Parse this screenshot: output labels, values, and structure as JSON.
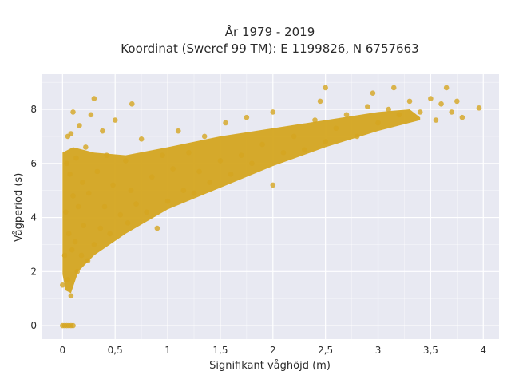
{
  "chart_data": {
    "type": "scatter",
    "title_line1": "År 1979 - 2019",
    "title_line2": "Koordinat (Sweref 99 TM): E 1199826, N 6757663",
    "xlabel": "Signifikant våghöjd (m)",
    "ylabel": "Vågperiod (s)",
    "xlim": [
      -0.2,
      4.15
    ],
    "ylim": [
      -0.5,
      9.3
    ],
    "xticks": [
      0,
      0.5,
      1,
      1.5,
      2,
      2.5,
      3,
      3.5,
      4
    ],
    "xtick_labels": [
      "0",
      "0,5",
      "1",
      "1,5",
      "2",
      "2,5",
      "3",
      "3,5",
      "4"
    ],
    "yticks": [
      0,
      2,
      4,
      6,
      8
    ],
    "ytick_labels": [
      "0",
      "2",
      "4",
      "6",
      "8"
    ],
    "grid": true,
    "colors": {
      "points": "#d4a520",
      "plot_bg": "#e8e9f2",
      "grid": "#ffffff"
    },
    "points": [
      [
        0.0,
        0
      ],
      [
        0.02,
        0
      ],
      [
        0.04,
        0
      ],
      [
        0.06,
        0
      ],
      [
        0.08,
        0
      ],
      [
        0.1,
        0
      ],
      [
        0.0,
        1.5
      ],
      [
        0.02,
        2.6
      ],
      [
        0.03,
        4.2
      ],
      [
        0.04,
        6.0
      ],
      [
        0.05,
        7.0
      ],
      [
        0.05,
        1.7
      ],
      [
        0.06,
        3.4
      ],
      [
        0.07,
        5.6
      ],
      [
        0.08,
        1.1
      ],
      [
        0.08,
        7.1
      ],
      [
        0.09,
        2.8
      ],
      [
        0.1,
        4.8
      ],
      [
        0.1,
        7.9
      ],
      [
        0.12,
        3.1
      ],
      [
        0.13,
        6.2
      ],
      [
        0.14,
        2.0
      ],
      [
        0.15,
        4.4
      ],
      [
        0.16,
        7.4
      ],
      [
        0.18,
        2.6
      ],
      [
        0.19,
        5.3
      ],
      [
        0.2,
        3.7
      ],
      [
        0.22,
        6.6
      ],
      [
        0.24,
        2.4
      ],
      [
        0.25,
        4.9
      ],
      [
        0.27,
        7.8
      ],
      [
        0.3,
        3.0
      ],
      [
        0.3,
        8.4
      ],
      [
        0.33,
        5.7
      ],
      [
        0.36,
        3.6
      ],
      [
        0.38,
        7.2
      ],
      [
        0.4,
        4.4
      ],
      [
        0.42,
        6.3
      ],
      [
        0.45,
        3.4
      ],
      [
        0.48,
        5.2
      ],
      [
        0.5,
        7.6
      ],
      [
        0.55,
        4.1
      ],
      [
        0.6,
        6.1
      ],
      [
        0.62,
        3.8
      ],
      [
        0.65,
        5.0
      ],
      [
        0.66,
        8.2
      ],
      [
        0.7,
        4.5
      ],
      [
        0.75,
        6.9
      ],
      [
        0.8,
        4.2
      ],
      [
        0.85,
        5.5
      ],
      [
        0.9,
        3.6
      ],
      [
        0.95,
        6.3
      ],
      [
        1.0,
        4.6
      ],
      [
        1.05,
        5.8
      ],
      [
        1.1,
        7.2
      ],
      [
        1.15,
        5.0
      ],
      [
        1.2,
        6.4
      ],
      [
        1.25,
        4.9
      ],
      [
        1.3,
        5.7
      ],
      [
        1.35,
        7.0
      ],
      [
        1.4,
        5.3
      ],
      [
        1.5,
        6.1
      ],
      [
        1.55,
        7.5
      ],
      [
        1.6,
        5.6
      ],
      [
        1.7,
        6.3
      ],
      [
        1.75,
        7.7
      ],
      [
        1.8,
        6.0
      ],
      [
        1.9,
        6.7
      ],
      [
        2.0,
        5.2
      ],
      [
        2.0,
        7.9
      ],
      [
        2.1,
        6.4
      ],
      [
        2.2,
        7.0
      ],
      [
        2.3,
        6.5
      ],
      [
        2.4,
        7.6
      ],
      [
        2.45,
        8.3
      ],
      [
        2.5,
        6.8
      ],
      [
        2.5,
        8.8
      ],
      [
        2.6,
        7.3
      ],
      [
        2.7,
        7.8
      ],
      [
        2.8,
        7.0
      ],
      [
        2.9,
        8.1
      ],
      [
        2.95,
        8.6
      ],
      [
        3.0,
        7.5
      ],
      [
        3.1,
        8.0
      ],
      [
        3.15,
        8.8
      ],
      [
        3.2,
        7.8
      ],
      [
        3.3,
        8.3
      ],
      [
        3.4,
        7.9
      ],
      [
        3.5,
        8.4
      ],
      [
        3.55,
        7.6
      ],
      [
        3.6,
        8.2
      ],
      [
        3.65,
        8.8
      ],
      [
        3.7,
        7.9
      ],
      [
        3.75,
        8.3
      ],
      [
        3.8,
        7.7
      ],
      [
        3.96,
        8.05
      ]
    ]
  }
}
